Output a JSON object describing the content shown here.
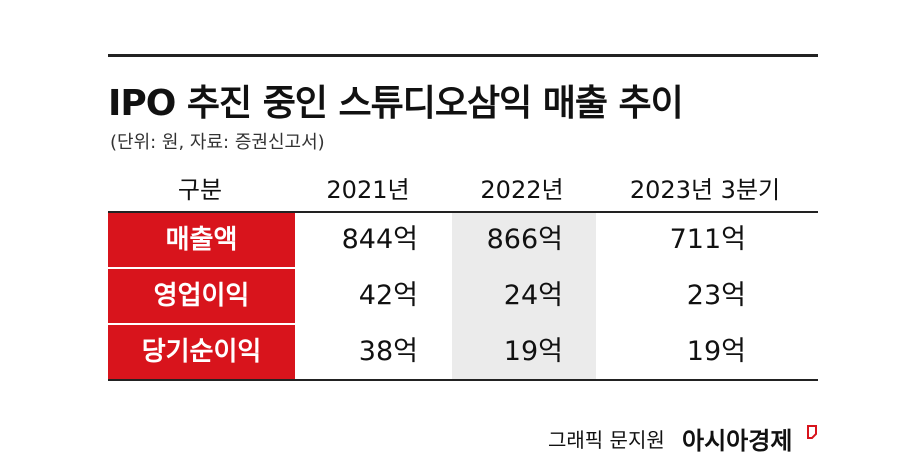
{
  "header": {
    "title": "IPO 추진 중인 스튜디오삼익 매출 추이",
    "subtitle": "(단위: 원, 자료: 증권신고서)"
  },
  "table": {
    "columns": [
      "구분",
      "2021년",
      "2022년",
      "2023년 3분기"
    ],
    "rows": [
      [
        "매출액",
        "844억",
        "866억",
        "711억"
      ],
      [
        "영업이익",
        "42억",
        "24억",
        "23억"
      ],
      [
        "당기순이익",
        "38억",
        "19억",
        "19억"
      ]
    ]
  },
  "footer": {
    "credit": "그래픽 문지원",
    "brand": "아시아경제"
  }
}
